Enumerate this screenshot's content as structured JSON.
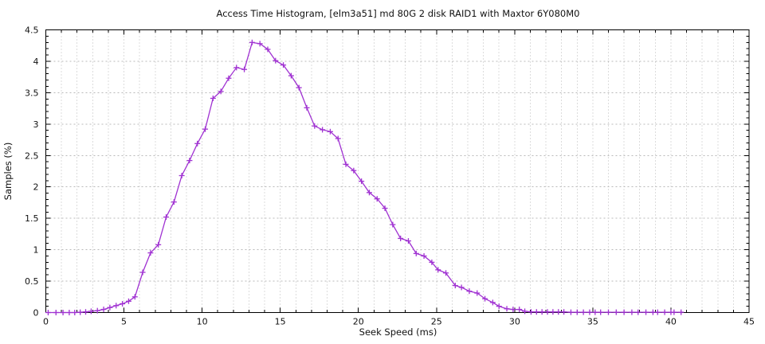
{
  "page": {
    "background": "#ffffff"
  },
  "chart_data": {
    "type": "line",
    "title": "Access Time Histogram, [elm3a51] md 80G 2 disk RAID1 with Maxtor 6Y080M0",
    "xlabel": "Seek Speed (ms)",
    "ylabel": "Samples (%)",
    "xlim": [
      0,
      45
    ],
    "ylim": [
      0,
      4.5
    ],
    "xtick_labels": [
      "0",
      "5",
      "10",
      "15",
      "20",
      "25",
      "30",
      "35",
      "40",
      "45"
    ],
    "xticks_major": [
      0,
      5,
      10,
      15,
      20,
      25,
      30,
      35,
      40,
      45
    ],
    "xtick_minor_step": 1,
    "ytick_labels": [
      "0",
      "0.5",
      "1",
      "1.5",
      "2",
      "2.5",
      "3",
      "3.5",
      "4",
      "4.5"
    ],
    "yticks_major": [
      0,
      0.5,
      1,
      1.5,
      2,
      2.5,
      3,
      3.5,
      4,
      4.5
    ],
    "ytick_minor_step": 0.1,
    "grid": {
      "vertical_step_ms": 1,
      "horizontal_step_pct": 0.5,
      "style": "dotted"
    },
    "legend_position": "none",
    "marker": "plus",
    "line_color": "#a032d2",
    "grid_color": "#b9b9b9",
    "axis_color": "#000000",
    "series": [
      {
        "name": "samples",
        "x": [
          0.15,
          0.65,
          1.1,
          1.5,
          1.85,
          2.2,
          2.55,
          2.9,
          3.3,
          3.7,
          4.1,
          4.5,
          4.9,
          5.3,
          5.7,
          6.2,
          6.7,
          7.2,
          7.7,
          8.2,
          8.7,
          9.2,
          9.7,
          10.2,
          10.7,
          11.2,
          11.7,
          12.2,
          12.7,
          13.2,
          13.7,
          14.2,
          14.7,
          15.2,
          15.7,
          16.2,
          16.7,
          17.2,
          17.7,
          18.2,
          18.7,
          19.2,
          19.7,
          20.2,
          20.7,
          21.2,
          21.7,
          22.2,
          22.7,
          23.2,
          23.7,
          24.2,
          24.7,
          25.1,
          25.6,
          26.2,
          26.6,
          27.1,
          27.6,
          28.1,
          28.6,
          29.0,
          29.5,
          29.9,
          30.3,
          30.65,
          31.05,
          31.4,
          31.75,
          32.1,
          32.45,
          32.8,
          33.15,
          33.6,
          34.0,
          34.4,
          34.8,
          35.15,
          35.5,
          36.0,
          36.5,
          37.0,
          37.5,
          37.9,
          38.4,
          38.85,
          39.15,
          39.6,
          40.0,
          40.2,
          40.65
        ],
        "y": [
          0,
          0,
          0,
          0,
          0,
          0.005,
          0.01,
          0.02,
          0.03,
          0.05,
          0.08,
          0.11,
          0.14,
          0.18,
          0.25,
          0.64,
          0.95,
          1.08,
          1.52,
          1.76,
          2.18,
          2.42,
          2.69,
          2.92,
          3.41,
          3.52,
          3.73,
          3.9,
          3.87,
          4.3,
          4.28,
          4.19,
          4.01,
          3.94,
          3.77,
          3.58,
          3.26,
          2.97,
          2.91,
          2.88,
          2.77,
          2.36,
          2.26,
          2.09,
          1.91,
          1.81,
          1.66,
          1.4,
          1.18,
          1.14,
          0.94,
          0.9,
          0.8,
          0.68,
          0.63,
          0.43,
          0.4,
          0.34,
          0.31,
          0.22,
          0.16,
          0.1,
          0.06,
          0.05,
          0.05,
          0.02,
          0.01,
          0.01,
          0.01,
          0.01,
          0.01,
          0.01,
          0.01,
          0.005,
          0.005,
          0.005,
          0.005,
          0.005,
          0.005,
          0.005,
          0.005,
          0.005,
          0.005,
          0.005,
          0.005,
          0.005,
          0.005,
          0.005,
          0.005,
          0.005,
          0.005
        ]
      }
    ]
  }
}
